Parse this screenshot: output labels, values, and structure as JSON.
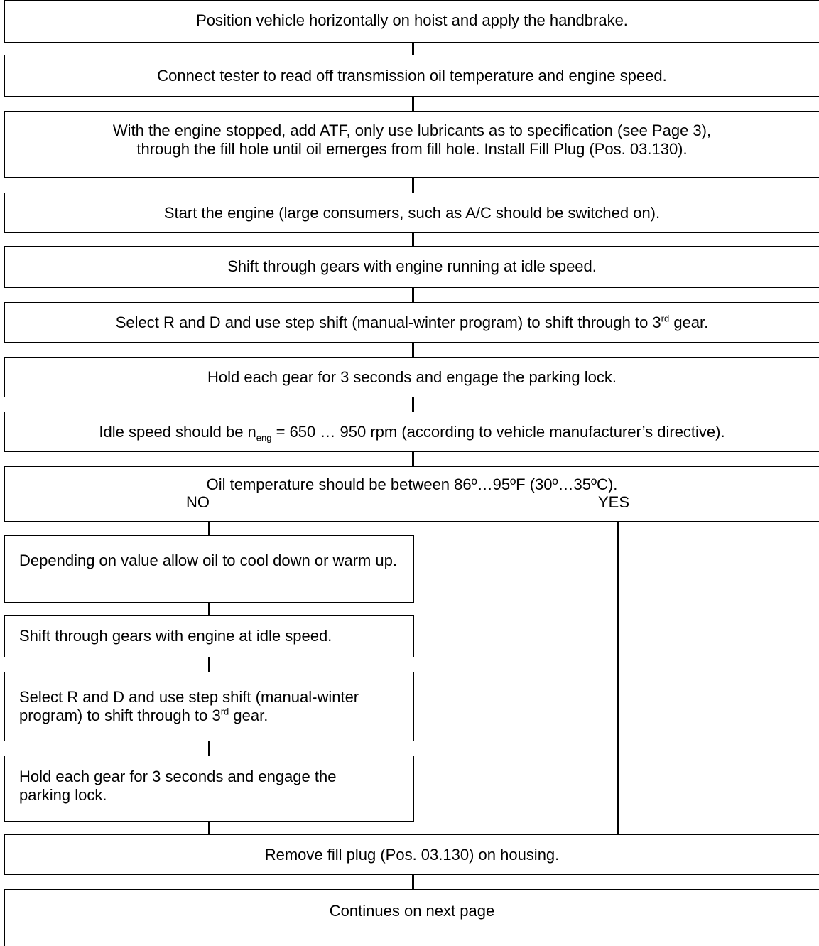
{
  "steps": {
    "s1": "Position vehicle horizontally on hoist and apply the handbrake.",
    "s2": "Connect tester to read off transmission oil temperature and engine speed.",
    "s3_line1": "With the engine stopped, add ATF, only use lubricants as to specification (see Page 3),",
    "s3_line2": "through the fill hole until oil emerges from fill hole. Install Fill Plug (Pos. 03.130).",
    "s4": "Start the engine (large consumers, such as A/C should be switched on).",
    "s5": "Shift through gears with engine running at idle speed.",
    "s6_pre": "Select R and D and use step shift (manual-winter program) to shift through to 3",
    "s6_sup": "rd",
    "s6_post": " gear.",
    "s7": "Hold each gear for 3 seconds and engage the parking lock.",
    "s8_pre": "Idle speed should be n",
    "s8_sub": "eng",
    "s8_post": " = 650 … 950 rpm (according to vehicle manufacturer’s directive).",
    "s9": "Oil temperature should be between 86º…95ºF (30º…35ºC).",
    "s9_no": "NO",
    "s9_yes": "YES",
    "n1": "Depending on value allow oil to cool down or warm up.",
    "n2": "Shift through gears with engine at idle speed.",
    "n3_pre": "Select R and D and use step shift (manual-winter program) to shift through to 3",
    "n3_sup": "rd",
    "n3_post": " gear.",
    "n4": "Hold each gear for 3 seconds and engage the parking lock.",
    "s10": "Remove fill plug (Pos. 03.130) on housing.",
    "s11": "Continues on next page"
  }
}
